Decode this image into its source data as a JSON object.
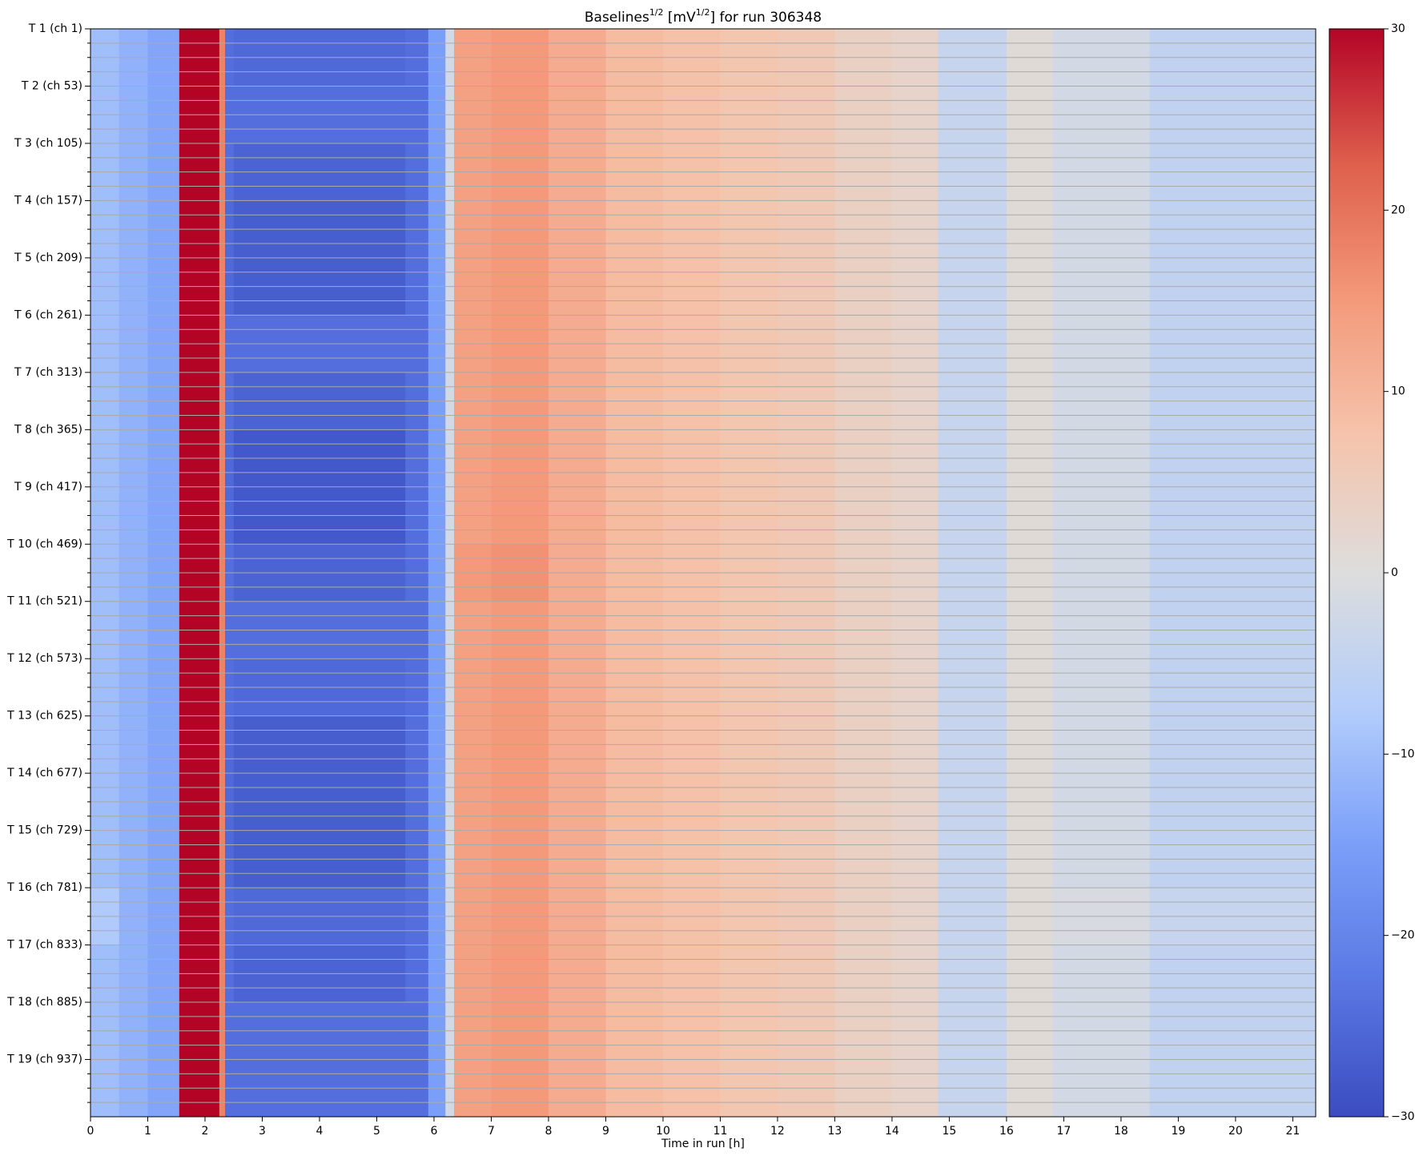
{
  "chart_data": {
    "type": "heatmap",
    "title": [
      "Baselines",
      "1/2",
      " [mV",
      "1/2",
      "] for run 306348"
    ],
    "xlabel": "Time in run [h]",
    "categories": [
      "T 1 (ch 1)",
      "T 2 (ch 53)",
      "T 3 (ch 105)",
      "T 4 (ch 157)",
      "T 5 (ch 209)",
      "T 6 (ch 261)",
      "T 7 (ch 313)",
      "T 8 (ch 365)",
      "T 9 (ch 417)",
      "T 10 (ch 469)",
      "T 11 (ch 521)",
      "T 12 (ch 573)",
      "T 13 (ch 625)",
      "T 14 (ch 677)",
      "T 15 (ch 729)",
      "T 16 (ch 781)",
      "T 17 (ch 833)",
      "T 18 (ch 885)",
      "T 19 (ch 937)"
    ],
    "xbins": [
      0,
      0.5,
      1,
      1.55,
      2.25,
      2.35,
      2.5,
      5.5,
      5.9,
      6.2,
      6.35,
      7,
      8,
      9,
      10,
      11,
      12,
      13,
      14,
      14.8,
      16,
      16.8,
      18.5,
      21.4
    ],
    "values": [
      [
        -10,
        -12,
        -14,
        30,
        18,
        -24,
        -25,
        -24,
        -15,
        -2,
        14,
        15,
        12,
        9,
        8,
        7,
        6,
        4,
        3,
        -4,
        1,
        -2,
        -5
      ],
      [
        -10,
        -12,
        -14,
        30,
        18,
        -24,
        -24,
        -24,
        -15,
        -2,
        14,
        15,
        12,
        9,
        8,
        7,
        6,
        4,
        3,
        -4,
        1,
        -2,
        -5
      ],
      [
        -10,
        -12,
        -14,
        30,
        18,
        -24,
        -26,
        -24,
        -15,
        -2,
        14,
        15,
        12,
        9,
        8,
        7,
        6,
        4,
        3,
        -4,
        1,
        -2,
        -5
      ],
      [
        -10,
        -12,
        -14,
        30,
        18,
        -25,
        -27,
        -24,
        -15,
        -2,
        14,
        15,
        12,
        9,
        8,
        7,
        6,
        4,
        3,
        -4,
        1,
        -2,
        -5
      ],
      [
        -10,
        -12,
        -14,
        30,
        18,
        -25,
        -27,
        -24,
        -15,
        -2,
        14,
        15,
        12,
        9,
        8,
        7,
        6,
        4,
        3,
        -4,
        1,
        -2,
        -5
      ],
      [
        -10,
        -12,
        -14,
        30,
        18,
        -24,
        -24,
        -24,
        -15,
        -2,
        14,
        15,
        12,
        9,
        8,
        7,
        6,
        4,
        3,
        -4,
        1,
        -2,
        -5
      ],
      [
        -10,
        -12,
        -14,
        30,
        18,
        -24,
        -26,
        -24,
        -15,
        -2,
        14,
        15,
        12,
        9,
        8,
        7,
        6,
        4,
        3,
        -4,
        1,
        -2,
        -5
      ],
      [
        -10,
        -12,
        -14,
        30,
        18,
        -25,
        -28,
        -24,
        -15,
        -2,
        14,
        15,
        12,
        9,
        8,
        7,
        6,
        4,
        3,
        -4,
        1,
        -2,
        -5
      ],
      [
        -10,
        -12,
        -14,
        30,
        18,
        -25,
        -28,
        -24,
        -15,
        -2,
        14,
        15,
        12,
        9,
        8,
        7,
        6,
        4,
        3,
        -4,
        1,
        -2,
        -5
      ],
      [
        -10,
        -12,
        -14,
        30,
        18,
        -24,
        -26,
        -24,
        -15,
        -2,
        15,
        16,
        12,
        9,
        8,
        7,
        6,
        4,
        3,
        -4,
        1,
        -2,
        -5
      ],
      [
        -10,
        -12,
        -14,
        30,
        18,
        -24,
        -24,
        -24,
        -15,
        -2,
        14,
        15,
        12,
        9,
        8,
        7,
        6,
        4,
        3,
        -4,
        1,
        -2,
        -5
      ],
      [
        -10,
        -12,
        -14,
        30,
        18,
        -24,
        -25,
        -24,
        -15,
        -2,
        14,
        15,
        12,
        9,
        8,
        7,
        6,
        4,
        3,
        -4,
        1,
        -2,
        -5
      ],
      [
        -10,
        -12,
        -14,
        30,
        18,
        -25,
        -27,
        -24,
        -15,
        -2,
        14,
        15,
        12,
        9,
        8,
        7,
        6,
        4,
        3,
        -4,
        1,
        -2,
        -5
      ],
      [
        -10,
        -12,
        -14,
        30,
        18,
        -25,
        -27,
        -24,
        -15,
        -2,
        14,
        15,
        12,
        9,
        8,
        7,
        6,
        4,
        3,
        -4,
        1,
        -2,
        -5
      ],
      [
        -10,
        -12,
        -14,
        30,
        18,
        -25,
        -27,
        -24,
        -15,
        -2,
        14,
        15,
        12,
        9,
        8,
        7,
        6,
        4,
        3,
        -4,
        1,
        -2,
        -5
      ],
      [
        -8,
        -12,
        -14,
        30,
        18,
        -24,
        -25,
        -24,
        -15,
        -2,
        14,
        15,
        12,
        9,
        8,
        7,
        6,
        4,
        3,
        -4,
        1,
        -1,
        -4
      ],
      [
        -10,
        -12,
        -14,
        30,
        18,
        -24,
        -26,
        -24,
        -15,
        -2,
        14,
        15,
        12,
        9,
        8,
        7,
        6,
        4,
        3,
        -4,
        1,
        -2,
        -5
      ],
      [
        -10,
        -12,
        -14,
        30,
        18,
        -24,
        -24,
        -24,
        -15,
        -2,
        14,
        15,
        12,
        9,
        8,
        7,
        6,
        4,
        3,
        -4,
        1,
        -2,
        -5
      ],
      [
        -10,
        -12,
        -14,
        30,
        18,
        -24,
        -24,
        -24,
        -15,
        -2,
        14,
        15,
        12,
        9,
        8,
        7,
        6,
        4,
        3,
        -4,
        1,
        -2,
        -5
      ]
    ],
    "xlim": [
      0,
      21.4
    ],
    "xticks": [
      0,
      1,
      2,
      3,
      4,
      5,
      6,
      7,
      8,
      9,
      10,
      11,
      12,
      13,
      14,
      15,
      16,
      17,
      18,
      19,
      20,
      21
    ],
    "clim": [
      -30,
      30
    ],
    "cticks": [
      {
        "value": -30,
        "label": "−30"
      },
      {
        "value": -20,
        "label": "−20"
      },
      {
        "value": -10,
        "label": "−10"
      },
      0,
      10,
      20,
      30
    ],
    "colormap": [
      "#3b4cc0",
      "#5a78e4",
      "#7b9ff9",
      "#b3cdfb",
      "#dddddd",
      "#f5c4ac",
      "#f49a7b",
      "#de604d",
      "#b40426"
    ]
  }
}
